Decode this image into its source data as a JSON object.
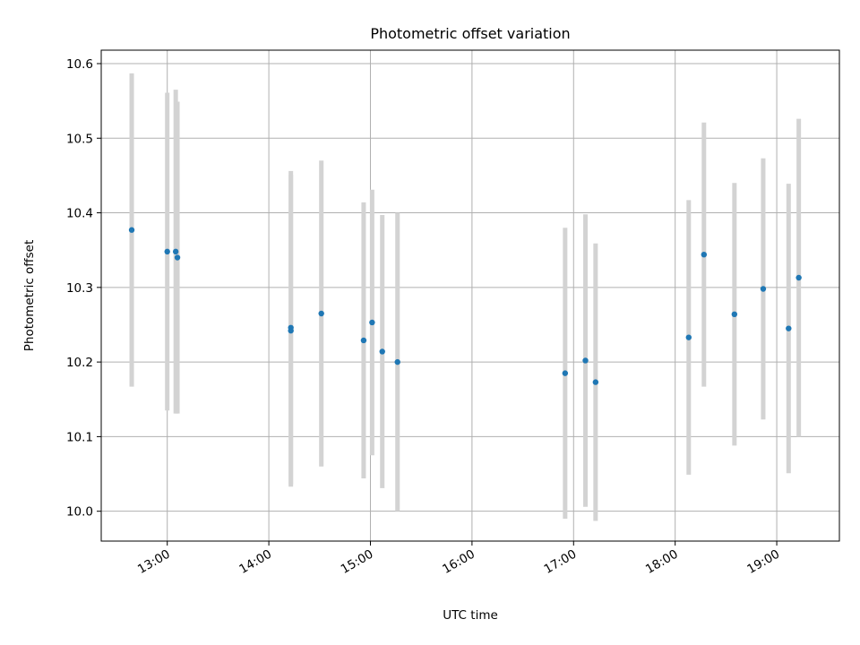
{
  "chart_data": {
    "type": "scatter",
    "title": "Photometric offset variation",
    "xlabel": "UTC time",
    "ylabel": "Photometric offset",
    "xlim": [
      "12:21",
      "19:37"
    ],
    "ylim": [
      9.96,
      10.618
    ],
    "xticks": [
      "13:00",
      "14:00",
      "15:00",
      "16:00",
      "17:00",
      "18:00",
      "19:00"
    ],
    "yticks": [
      10.0,
      10.1,
      10.2,
      10.3,
      10.4,
      10.5,
      10.6
    ],
    "grid": true,
    "colors": {
      "point": "#1f77b4",
      "errorbar": "#d3d3d3",
      "grid": "#b0b0b0"
    },
    "points": [
      {
        "x": "12:39",
        "y": 10.377,
        "err": 0.21
      },
      {
        "x": "13:00",
        "y": 10.348,
        "err": 0.213
      },
      {
        "x": "13:05",
        "y": 10.348,
        "err": 0.217
      },
      {
        "x": "13:06",
        "y": 10.34,
        "err": 0.209
      },
      {
        "x": "14:13",
        "y": 10.246,
        "err": 0.21
      },
      {
        "x": "14:13",
        "y": 10.242,
        "err": 0.209
      },
      {
        "x": "14:31",
        "y": 10.265,
        "err": 0.205
      },
      {
        "x": "14:56",
        "y": 10.229,
        "err": 0.185
      },
      {
        "x": "15:01",
        "y": 10.253,
        "err": 0.178
      },
      {
        "x": "15:07",
        "y": 10.214,
        "err": 0.183
      },
      {
        "x": "15:16",
        "y": 10.2,
        "err": 0.2
      },
      {
        "x": "16:55",
        "y": 10.185,
        "err": 0.195
      },
      {
        "x": "17:07",
        "y": 10.202,
        "err": 0.196
      },
      {
        "x": "17:13",
        "y": 10.173,
        "err": 0.186
      },
      {
        "x": "18:08",
        "y": 10.233,
        "err": 0.184
      },
      {
        "x": "18:17",
        "y": 10.344,
        "err": 0.177
      },
      {
        "x": "18:35",
        "y": 10.264,
        "err": 0.176
      },
      {
        "x": "18:52",
        "y": 10.298,
        "err": 0.175
      },
      {
        "x": "19:07",
        "y": 10.245,
        "err": 0.194
      },
      {
        "x": "19:13",
        "y": 10.313,
        "err": 0.213
      }
    ]
  }
}
